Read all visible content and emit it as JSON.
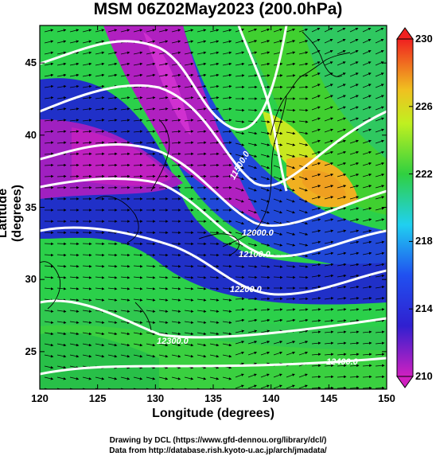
{
  "title": "MSM 06Z02May2023 (200.0hPa)",
  "xlabel": "Longitude (degrees)",
  "ylabel": "Latitude  (degrees)",
  "credit_1": "Drawing by DCL (https://www.gfd-dennou.org/library/dcl/)",
  "credit_2": "Data from http://database.rish.kyoto-u.ac.jp/arch/jmadata/",
  "x_ticks": [
    "120",
    "125",
    "130",
    "135",
    "140",
    "145",
    "150"
  ],
  "y_ticks": [
    "25",
    "30",
    "35",
    "40",
    "45"
  ],
  "colorbar_ticks": [
    "210",
    "214",
    "218",
    "222",
    "226",
    "230"
  ],
  "contour_labels": [
    "11500.0",
    "12000.0",
    "12100.0",
    "12200.0",
    "12300.0",
    "12400.0"
  ],
  "map": {
    "lon_range": [
      120,
      150
    ],
    "lat_range": [
      22.4,
      47.6
    ],
    "colorbar_range": [
      210,
      230
    ],
    "colors": {
      "magenta": "#c020c0",
      "blue": "#2020d0",
      "cyan": "#20c0e0",
      "green": "#30d030",
      "yellow": "#e8e820",
      "orange": "#f0a020",
      "red": "#f02020"
    }
  }
}
